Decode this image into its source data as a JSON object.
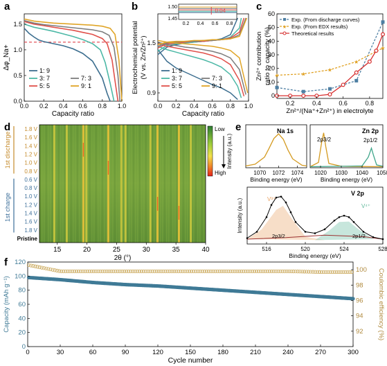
{
  "colors": {
    "c19": "#3c6e8f",
    "c37": "#4cb8a6",
    "c55": "#e0504a",
    "c73": "#7d7d7d",
    "c91": "#e0a527",
    "dashed": "#e0404a",
    "expDis": "#4e7fa3",
    "expEdx": "#e0a020",
    "theory": "#d62c2c",
    "capacity": "#3f7a96",
    "ce": "#caa85a",
    "na": "#d49a20",
    "zn32": "#d49a20",
    "zn12": "#3fa58a",
    "v2p": "#9b3030",
    "v3": "#e8a060",
    "v4": "#5fb89a"
  },
  "panels": {
    "a": {
      "letter": "a"
    },
    "b": {
      "letter": "b"
    },
    "c": {
      "letter": "c"
    },
    "d": {
      "letter": "d"
    },
    "e": {
      "letter": "e"
    },
    "f": {
      "letter": "f"
    }
  },
  "chart_data": [
    {
      "panel": "a",
      "type": "line",
      "ylabel": "Δφ_Na+",
      "xlabel": "Capacity ratio",
      "xlim": [
        0,
        1
      ],
      "ylim": [
        0,
        1.7
      ],
      "xticks": [
        "0.0",
        "0.2",
        "0.4",
        "0.6",
        "0.8",
        "1.0"
      ],
      "yticks": [
        "0.0",
        "0.5",
        "1.0",
        "1.5"
      ],
      "reference_line": {
        "y": 1.15,
        "style": "dashed"
      },
      "series": [
        {
          "name": "1: 9",
          "color_key": "c19",
          "x": [
            0,
            0.05,
            0.1,
            0.15,
            0.2,
            0.3,
            0.4,
            0.5,
            0.6,
            0.7,
            0.8,
            0.85,
            0.88
          ],
          "y": [
            1.42,
            1.32,
            1.25,
            1.19,
            1.16,
            1.12,
            1.08,
            1.02,
            0.93,
            0.78,
            0.45,
            0.15,
            0.0
          ]
        },
        {
          "name": "3: 7",
          "color_key": "c37",
          "x": [
            0,
            0.1,
            0.2,
            0.3,
            0.4,
            0.5,
            0.6,
            0.7,
            0.78,
            0.83,
            0.88,
            0.92
          ],
          "y": [
            1.5,
            1.44,
            1.4,
            1.36,
            1.31,
            1.26,
            1.2,
            1.12,
            1.0,
            0.75,
            0.35,
            0.0
          ]
        },
        {
          "name": "5: 5",
          "color_key": "c55",
          "x": [
            0,
            0.1,
            0.2,
            0.3,
            0.4,
            0.5,
            0.6,
            0.7,
            0.8,
            0.85,
            0.9,
            0.93,
            0.96
          ],
          "y": [
            1.55,
            1.5,
            1.47,
            1.44,
            1.41,
            1.38,
            1.34,
            1.3,
            1.22,
            1.12,
            0.8,
            0.4,
            0.0
          ]
        },
        {
          "name": "7: 3",
          "color_key": "c73",
          "x": [
            0,
            0.1,
            0.2,
            0.3,
            0.4,
            0.5,
            0.6,
            0.7,
            0.8,
            0.87,
            0.92,
            0.96,
            0.98
          ],
          "y": [
            1.57,
            1.52,
            1.49,
            1.47,
            1.45,
            1.43,
            1.41,
            1.39,
            1.35,
            1.28,
            1.05,
            0.5,
            0.0
          ]
        },
        {
          "name": "9: 1",
          "color_key": "c91",
          "x": [
            0,
            0.1,
            0.2,
            0.3,
            0.4,
            0.5,
            0.6,
            0.7,
            0.8,
            0.88,
            0.93,
            0.97,
            1.0
          ],
          "y": [
            1.6,
            1.56,
            1.54,
            1.52,
            1.51,
            1.5,
            1.49,
            1.48,
            1.46,
            1.42,
            1.3,
            0.8,
            0.0
          ]
        }
      ]
    },
    {
      "panel": "b",
      "type": "line",
      "ylabel_line1": "Electrochemical potential",
      "ylabel_line2": "(V vs. Zn/Zn²⁺)",
      "xlabel": "Capacity ratio",
      "xlim": [
        0,
        1
      ],
      "ylim": [
        0.8,
        1.85
      ],
      "xticks": [
        "0.0",
        "0.2",
        "0.4",
        "0.6",
        "0.8",
        "1.0"
      ],
      "yticks": [
        "0.9",
        "1.5"
      ],
      "inset": {
        "xticks": [
          "0.2",
          "0.4",
          "0.6",
          "0.8"
        ],
        "yticks": [
          "1.50",
          "1.45"
        ],
        "annotation": "0.04"
      },
      "series": [
        {
          "name": "1: 9",
          "color_key": "c19",
          "charge": {
            "x": [
              0,
              0.1,
              0.2,
              0.3,
              0.4,
              0.5,
              0.6,
              0.7,
              0.8,
              0.88
            ],
            "y": [
              1.36,
              1.45,
              1.48,
              1.5,
              1.51,
              1.52,
              1.53,
              1.55,
              1.6,
              1.8
            ]
          },
          "discharge": {
            "x": [
              0,
              0.05,
              0.1,
              0.2,
              0.3,
              0.4,
              0.5,
              0.6,
              0.7,
              0.8,
              0.88
            ],
            "y": [
              1.42,
              1.35,
              1.28,
              1.2,
              1.15,
              1.1,
              1.05,
              1.0,
              0.96,
              0.9,
              0.82
            ]
          }
        },
        {
          "name": "3: 7",
          "color_key": "c37",
          "charge": {
            "x": [
              0,
              0.1,
              0.2,
              0.3,
              0.4,
              0.5,
              0.6,
              0.7,
              0.8,
              0.9,
              0.92
            ],
            "y": [
              1.4,
              1.47,
              1.49,
              1.5,
              1.51,
              1.52,
              1.53,
              1.54,
              1.57,
              1.68,
              1.8
            ]
          },
          "discharge": {
            "x": [
              0,
              0.1,
              0.2,
              0.3,
              0.4,
              0.5,
              0.6,
              0.7,
              0.8,
              0.88,
              0.92
            ],
            "y": [
              1.46,
              1.42,
              1.39,
              1.36,
              1.33,
              1.3,
              1.26,
              1.21,
              1.12,
              0.98,
              0.84
            ]
          }
        },
        {
          "name": "5: 5",
          "color_key": "c55",
          "charge": {
            "x": [
              0,
              0.1,
              0.2,
              0.3,
              0.4,
              0.5,
              0.6,
              0.7,
              0.8,
              0.9,
              0.95
            ],
            "y": [
              1.44,
              1.49,
              1.5,
              1.51,
              1.52,
              1.52,
              1.53,
              1.54,
              1.56,
              1.63,
              1.8
            ]
          },
          "discharge": {
            "x": [
              0,
              0.1,
              0.2,
              0.3,
              0.4,
              0.5,
              0.6,
              0.7,
              0.8,
              0.9,
              0.95
            ],
            "y": [
              1.49,
              1.46,
              1.44,
              1.42,
              1.4,
              1.38,
              1.35,
              1.31,
              1.24,
              1.05,
              0.86
            ]
          }
        },
        {
          "name": "7: 3",
          "color_key": "c73",
          "charge": {
            "x": [
              0,
              0.1,
              0.2,
              0.3,
              0.4,
              0.5,
              0.6,
              0.7,
              0.8,
              0.9,
              0.97
            ],
            "y": [
              1.46,
              1.5,
              1.51,
              1.52,
              1.52,
              1.53,
              1.53,
              1.54,
              1.55,
              1.6,
              1.8
            ]
          },
          "discharge": {
            "x": [
              0,
              0.1,
              0.2,
              0.3,
              0.4,
              0.5,
              0.6,
              0.7,
              0.8,
              0.9,
              0.97
            ],
            "y": [
              1.51,
              1.48,
              1.47,
              1.45,
              1.44,
              1.42,
              1.4,
              1.37,
              1.32,
              1.18,
              0.88
            ]
          }
        },
        {
          "name": "9: 1",
          "color_key": "c91",
          "charge": {
            "x": [
              0,
              0.1,
              0.2,
              0.3,
              0.4,
              0.5,
              0.6,
              0.7,
              0.8,
              0.9,
              0.98
            ],
            "y": [
              1.48,
              1.51,
              1.52,
              1.52,
              1.53,
              1.53,
              1.54,
              1.54,
              1.55,
              1.58,
              1.8
            ]
          },
          "discharge": {
            "x": [
              0,
              0.1,
              0.2,
              0.3,
              0.4,
              0.5,
              0.6,
              0.7,
              0.8,
              0.9,
              0.99
            ],
            "y": [
              1.53,
              1.51,
              1.5,
              1.49,
              1.48,
              1.47,
              1.46,
              1.44,
              1.41,
              1.32,
              0.9
            ]
          }
        }
      ]
    },
    {
      "panel": "c",
      "type": "line",
      "ylabel_line1": "Zn²⁺ contribution",
      "ylabel_line2": "ratio to capacity (%)",
      "xlabel": "Zn²⁺/(Na⁺+Zn²⁺) in electrolyte",
      "xlim": [
        0.1,
        0.9
      ],
      "ylim": [
        -2,
        60
      ],
      "xticks": [
        "0.2",
        "0.4",
        "0.6",
        "0.8"
      ],
      "yticks": [
        "0",
        "10",
        "20",
        "30",
        "40",
        "50",
        "60"
      ],
      "series": [
        {
          "name": "Exp. (From discharge curves)",
          "color_key": "expDis",
          "marker": "square",
          "style": "dashed",
          "x": [
            0.1,
            0.3,
            0.5,
            0.7,
            0.9
          ],
          "y": [
            6,
            3,
            5,
            11,
            54
          ]
        },
        {
          "name": "Exp. (From EDX results)",
          "color_key": "expEdx",
          "marker": "star",
          "style": "dashed",
          "x": [
            0.1,
            0.3,
            0.5,
            0.7,
            0.9
          ],
          "y": [
            15,
            16,
            19,
            25,
            35
          ]
        },
        {
          "name": "Theoretical results",
          "color_key": "theory",
          "marker": "circle",
          "style": "solid",
          "x": [
            0.1,
            0.2,
            0.3,
            0.4,
            0.5,
            0.6,
            0.7,
            0.8,
            0.85,
            0.9
          ],
          "y": [
            0,
            0,
            0,
            0,
            1,
            8,
            17,
            25,
            33,
            45
          ]
        }
      ]
    },
    {
      "panel": "d",
      "type": "heatmap",
      "xlabel": "2θ (°)",
      "xlim": [
        12,
        40
      ],
      "xticks": [
        "15",
        "20",
        "25",
        "30",
        "35",
        "40"
      ],
      "rows": [
        "Pristine",
        "1.8 V",
        "1.6 V",
        "1.4 V",
        "1.2 V",
        "1.0 V",
        "0.8 V",
        "0.6 V",
        "0.8 V",
        "1.0 V",
        "1.2 V",
        "1.4 V",
        "1.6 V",
        "1.8 V"
      ],
      "y_groups": [
        "1st charge",
        "1st discharge"
      ],
      "colorbar": {
        "top": "Low",
        "bottom": "High",
        "title": "Intensity (a.u.)"
      },
      "peak_positions": [
        14.5,
        16.6,
        19.4,
        19.9,
        23.6,
        25.8,
        26.5,
        30.7,
        31.9,
        35.5,
        37.5
      ]
    },
    {
      "panel": "e",
      "type": "line",
      "subplots": [
        {
          "title": "Na 1s",
          "xlabel": "Binding energy (eV)",
          "xticks": [
            "1070",
            "1072",
            "1074"
          ],
          "xlim": [
            1068.5,
            1075
          ],
          "series": [
            {
              "name": "Na 1s",
              "color_key": "na",
              "x": [
                1068.5,
                1069.5,
                1070.5,
                1071.0,
                1071.5,
                1072.0,
                1072.5,
                1073.0,
                1073.5,
                1074.5,
                1075
              ],
              "y": [
                0.05,
                0.1,
                0.3,
                0.55,
                0.82,
                0.95,
                0.8,
                0.5,
                0.25,
                0.07,
                0.05
              ]
            }
          ]
        },
        {
          "title": "Zn 2p",
          "xlabel": "Binding energy (eV)",
          "xticks": [
            "1020",
            "1030",
            "1040",
            "1050"
          ],
          "xlim": [
            1015,
            1050
          ],
          "labels": [
            "2p3/2",
            "2p1/2"
          ],
          "series": [
            {
              "name": "2p3/2",
              "color_key": "zn32",
              "x": [
                1015,
                1019,
                1020.5,
                1021.5,
                1022.5,
                1024,
                1030,
                1050
              ],
              "y": [
                0.03,
                0.15,
                0.7,
                0.98,
                0.6,
                0.12,
                0.04,
                0.03
              ]
            },
            {
              "name": "2p1/2",
              "color_key": "zn12",
              "x": [
                1015,
                1040,
                1043,
                1044.5,
                1045.5,
                1047,
                1050
              ],
              "y": [
                0.03,
                0.05,
                0.3,
                0.55,
                0.35,
                0.08,
                0.04
              ]
            }
          ]
        },
        {
          "title": "V 2p",
          "xlabel": "Binding energy (eV)",
          "ylabel": "Intensity (a.u.)",
          "xticks": [
            "516",
            "520",
            "524",
            "528"
          ],
          "xlim": [
            514,
            528
          ],
          "labels": [
            "V³⁺",
            "V⁴⁺",
            "2p3/2",
            "2p1/2"
          ],
          "series": [
            {
              "name": "data",
              "color_key": "v2p",
              "x": [
                514,
                515,
                516,
                516.5,
                517,
                517.5,
                518,
                518.5,
                519,
                520,
                521,
                522,
                523,
                523.5,
                524,
                524.5,
                525,
                526,
                527,
                528
              ],
              "y": [
                0.12,
                0.25,
                0.55,
                0.8,
                0.95,
                0.97,
                0.85,
                0.65,
                0.45,
                0.25,
                0.22,
                0.3,
                0.48,
                0.55,
                0.58,
                0.55,
                0.45,
                0.25,
                0.14,
                0.1
              ]
            }
          ]
        }
      ]
    },
    {
      "panel": "f",
      "type": "scatter",
      "xlabel": "Cycle number",
      "ylabel_left": "Capacity (mAh g⁻¹)",
      "ylabel_right": "Coulombic efficiency (%)",
      "xlim": [
        0,
        300
      ],
      "ylim_left": [
        0,
        120
      ],
      "ylim_right": [
        90,
        101
      ],
      "xticks": [
        "0",
        "30",
        "60",
        "90",
        "120",
        "150",
        "180",
        "210",
        "240",
        "270",
        "300"
      ],
      "yticks_left": [
        "0",
        "20",
        "40",
        "60",
        "80",
        "100",
        "120"
      ],
      "yticks_right": [
        "92",
        "94",
        "96",
        "98",
        "100"
      ],
      "series": [
        {
          "name": "Capacity",
          "color_key": "capacity",
          "axis": "left",
          "x": [
            1,
            30,
            60,
            90,
            120,
            150,
            180,
            210,
            240,
            270,
            300
          ],
          "y": [
            98,
            95,
            91,
            88,
            86,
            83,
            80,
            77,
            74,
            71,
            68
          ]
        },
        {
          "name": "Coulombic efficiency",
          "color_key": "ce",
          "axis": "right",
          "x": [
            1,
            30,
            60,
            90,
            120,
            150,
            180,
            210,
            240,
            270,
            300
          ],
          "y": [
            100.6,
            99.8,
            99.8,
            99.8,
            99.8,
            99.8,
            99.8,
            99.8,
            99.8,
            99.7,
            99.7
          ]
        }
      ]
    }
  ]
}
